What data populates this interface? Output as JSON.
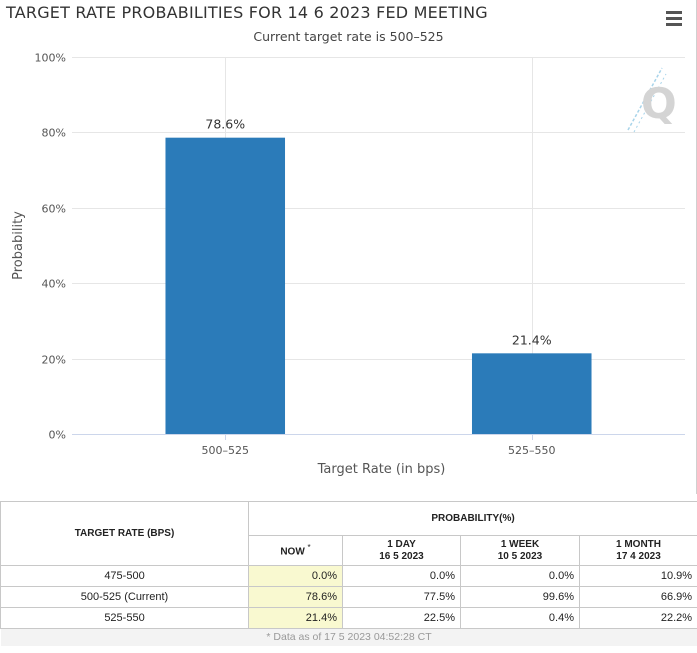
{
  "chart": {
    "title": "TARGET RATE PROBABILITIES FOR 14 6 2023 FED MEETING",
    "subtitle": "Current target rate is 500–525",
    "menu_icon": "hamburger-menu-icon",
    "watermark_text": "Q",
    "bar_color": "#2b7bb9"
  },
  "chart_data": {
    "type": "bar",
    "title": "TARGET RATE PROBABILITIES FOR 14 6 2023 FED MEETING",
    "subtitle": "Current target rate is 500–525",
    "categories": [
      "500–525",
      "525–550"
    ],
    "values": [
      78.6,
      21.4
    ],
    "value_labels": [
      "78.6%",
      "21.4%"
    ],
    "xlabel": "Target Rate (in bps)",
    "ylabel": "Probability",
    "ylim": [
      0,
      100
    ],
    "yticks": [
      0,
      20,
      40,
      60,
      80,
      100
    ],
    "ytick_labels": [
      "0%",
      "20%",
      "40%",
      "60%",
      "80%",
      "100%"
    ],
    "grid": true
  },
  "table": {
    "rate_header": "TARGET RATE (BPS)",
    "probability_header": "PROBABILITY(%)",
    "columns": [
      {
        "line1": "NOW",
        "line2": "",
        "sup": "*"
      },
      {
        "line1": "1 DAY",
        "line2": "16 5 2023",
        "sup": ""
      },
      {
        "line1": "1 WEEK",
        "line2": "10 5 2023",
        "sup": ""
      },
      {
        "line1": "1 MONTH",
        "line2": "17 4 2023",
        "sup": ""
      }
    ],
    "rows": [
      {
        "rate": "475-500",
        "values": [
          "0.0%",
          "0.0%",
          "0.0%",
          "10.9%"
        ]
      },
      {
        "rate": "500-525 (Current)",
        "values": [
          "78.6%",
          "77.5%",
          "99.6%",
          "66.9%"
        ]
      },
      {
        "rate": "525-550",
        "values": [
          "21.4%",
          "22.5%",
          "0.4%",
          "22.2%"
        ]
      }
    ],
    "footnote": "* Data as of 17 5 2023 04:52:28 CT"
  }
}
